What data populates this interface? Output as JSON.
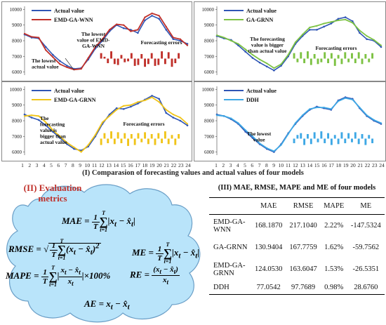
{
  "x_tick_labels": [
    "1",
    "2",
    "3",
    "4",
    "5",
    "6",
    "7",
    "8",
    "9",
    "10",
    "11",
    "12",
    "13",
    "14",
    "15",
    "16",
    "17",
    "18",
    "19",
    "20",
    "21",
    "22",
    "23",
    "24"
  ],
  "y_tick_labels": [
    "6000",
    "7000",
    "8000",
    "9000",
    "10000"
  ],
  "comparison_caption": "(I) Comparasion of forecasting values and actual values of four models",
  "panel_annotations": {
    "p1": {
      "lowest_actual": "The lowest actual value",
      "lowest_model": "The lowest value of EMD-GA-WNN",
      "errors": "Forecasting errors"
    },
    "p2": {
      "bigger": "The forecasting value is bigger than actual value",
      "errors": "Forecasting errors"
    },
    "p3": {
      "bigger": "The forecasting value is bigger than actual value",
      "errors": "Forecasting errors"
    },
    "p4": {
      "lowest": "The lowest value"
    }
  },
  "evaluation": {
    "title_line1": "(II) Evaluation",
    "title_line2": "metrics"
  },
  "table": {
    "title": "(III) MAE, RMSE, MAPE and ME of four models",
    "headers": [
      "",
      "MAE",
      "RMSE",
      "MAPE",
      "ME"
    ],
    "rows": [
      {
        "model": "EMD-GA-WNN",
        "mae": "168.1870",
        "rmse": "217.1040",
        "mape": "2.22%",
        "me": "-147.5324"
      },
      {
        "model": "GA-GRNN",
        "mae": "130.9404",
        "rmse": "167.7759",
        "mape": "1.62%",
        "me": "-59.7562"
      },
      {
        "model": "EMD-GA-GRNN",
        "mae": "124.0530",
        "rmse": "163.6047",
        "mape": "1.53%",
        "me": "-26.5351"
      },
      {
        "model": "DDH",
        "mae": "77.0542",
        "rmse": "97.7689",
        "mape": "0.98%",
        "me": "28.6760"
      }
    ]
  },
  "chart_data": [
    {
      "type": "line",
      "x": [
        1,
        2,
        3,
        4,
        5,
        6,
        7,
        8,
        9,
        10,
        11,
        12,
        13,
        14,
        15,
        16,
        17,
        18,
        19,
        20,
        21,
        22,
        23,
        24
      ],
      "ylim": [
        5800,
        10200
      ],
      "series": [
        {
          "name": "Actual value",
          "color": "#2f55b5",
          "values": [
            8400,
            8200,
            8150,
            7600,
            7100,
            6700,
            6400,
            6200,
            6250,
            6800,
            7500,
            8000,
            8600,
            9000,
            8800,
            8700,
            8500,
            9300,
            9600,
            9400,
            8700,
            8100,
            8000,
            7800
          ]
        },
        {
          "name": "EMD-GA-WNN",
          "color": "#c0302a",
          "values": [
            8450,
            8250,
            8200,
            7400,
            6950,
            6500,
            6300,
            6150,
            6200,
            6900,
            7600,
            8100,
            8700,
            9050,
            9000,
            8600,
            8700,
            9500,
            9750,
            9600,
            8900,
            8200,
            8100,
            7700
          ]
        }
      ],
      "errors": {
        "color": "#c0302a",
        "values": [
          60,
          20,
          -50,
          80,
          -60,
          -70,
          40,
          -40,
          -30,
          60,
          -80,
          -70,
          50,
          -90,
          -60,
          60,
          -80,
          -70,
          80,
          -60,
          70,
          -90,
          -50,
          60
        ]
      }
    },
    {
      "type": "line",
      "x": [
        1,
        2,
        3,
        4,
        5,
        6,
        7,
        8,
        9,
        10,
        11,
        12,
        13,
        14,
        15,
        16,
        17,
        18,
        19,
        20,
        21,
        22,
        23,
        24
      ],
      "ylim": [
        5800,
        10200
      ],
      "series": [
        {
          "name": "Actual value",
          "color": "#2f55b5",
          "values": [
            8300,
            8150,
            8050,
            7700,
            7300,
            6900,
            6600,
            6350,
            6100,
            6400,
            7000,
            7800,
            8300,
            8700,
            8700,
            8900,
            9100,
            9400,
            9500,
            9250,
            8500,
            8100,
            8000,
            7600
          ]
        },
        {
          "name": "GA-GRNN",
          "color": "#7dc243",
          "values": [
            8350,
            8200,
            8000,
            7800,
            7450,
            7100,
            6800,
            6550,
            6250,
            6500,
            7100,
            7900,
            8400,
            8850,
            8950,
            9100,
            9200,
            9300,
            9350,
            9150,
            8650,
            8300,
            8050,
            7700
          ]
        }
      ],
      "errors": {
        "color": "#7dc243",
        "values": [
          60,
          -40,
          70,
          -50,
          80,
          -70,
          50,
          -60,
          -40,
          70,
          -50,
          60,
          -80,
          40,
          -60,
          70,
          -40,
          60,
          -50,
          70,
          -60,
          50,
          -40,
          60
        ]
      }
    },
    {
      "type": "line",
      "x": [
        1,
        2,
        3,
        4,
        5,
        6,
        7,
        8,
        9,
        10,
        11,
        12,
        13,
        14,
        15,
        16,
        17,
        18,
        19,
        20,
        21,
        22,
        23,
        24
      ],
      "ylim": [
        5800,
        10200
      ],
      "series": [
        {
          "name": "Actual value",
          "color": "#2f55b5",
          "values": [
            8400,
            8200,
            8050,
            7700,
            7300,
            6900,
            6500,
            6200,
            6100,
            6350,
            7000,
            7800,
            8400,
            8800,
            8750,
            8900,
            9100,
            9350,
            9600,
            9400,
            8500,
            8200,
            8000,
            7700
          ]
        },
        {
          "name": "EMD-GA-GRNN",
          "color": "#f0c419",
          "values": [
            8300,
            8350,
            8300,
            7900,
            7400,
            7000,
            6600,
            6300,
            6000,
            6450,
            7100,
            7900,
            8300,
            8700,
            8950,
            9000,
            9200,
            9300,
            9500,
            9200,
            8700,
            8400,
            8200,
            7800
          ]
        }
      ],
      "errors": {
        "color": "#f0c419",
        "values": [
          -70,
          60,
          -50,
          80,
          -60,
          70,
          -50,
          60,
          -80,
          50,
          -70,
          60,
          -40,
          70,
          -60,
          50,
          -70,
          60,
          -50,
          80,
          -60,
          40,
          -70,
          50
        ]
      }
    },
    {
      "type": "line",
      "x": [
        1,
        2,
        3,
        4,
        5,
        6,
        7,
        8,
        9,
        10,
        11,
        12,
        13,
        14,
        15,
        16,
        17,
        18,
        19,
        20,
        21,
        22,
        23,
        24
      ],
      "ylim": [
        5800,
        10200
      ],
      "series": [
        {
          "name": "Actual value",
          "color": "#2f55b5",
          "values": [
            8400,
            8300,
            8100,
            7800,
            7300,
            6900,
            6500,
            6200,
            6000,
            6500,
            7200,
            7800,
            8300,
            8700,
            8900,
            8800,
            8700,
            9300,
            9500,
            9400,
            8800,
            8300,
            8000,
            7800
          ]
        },
        {
          "name": "DDH",
          "color": "#3ea8e5",
          "values": [
            8350,
            8300,
            8150,
            7850,
            7400,
            7000,
            6550,
            6250,
            6050,
            6450,
            7150,
            7850,
            8350,
            8750,
            8850,
            8850,
            8750,
            9250,
            9450,
            9350,
            8850,
            8350,
            8050,
            7850
          ]
        }
      ],
      "errors": {
        "color": "#3ea8e5",
        "values": [
          -50,
          40,
          60,
          -70,
          50,
          -60,
          70,
          -40,
          80,
          -50,
          60,
          -70,
          40,
          -60,
          70,
          -50,
          60,
          -40,
          70,
          -60,
          50,
          -70,
          40,
          -50
        ]
      }
    }
  ]
}
